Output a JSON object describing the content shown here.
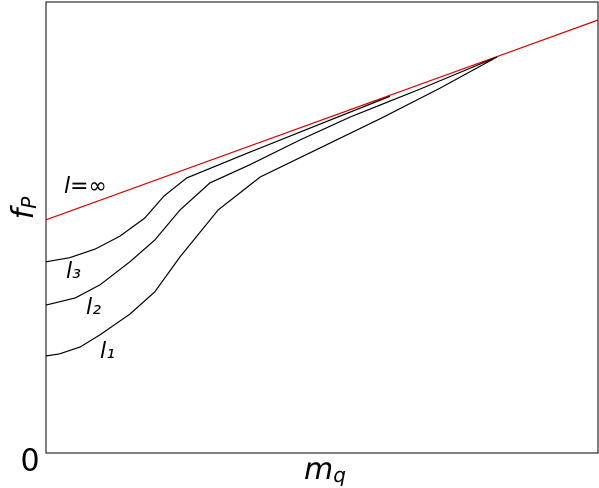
{
  "chart_data": {
    "type": "line",
    "xlabel": {
      "text": "m",
      "sub": "q"
    },
    "ylabel": {
      "text": "f",
      "sub": "P"
    },
    "xlim": [
      0,
      100
    ],
    "ylim": [
      0,
      100
    ],
    "yticks": [
      0
    ],
    "series": [
      {
        "name": "l=∞",
        "color": "#e00000",
        "x": [
          0,
          100
        ],
        "values": [
          51.7,
          96.0
        ]
      },
      {
        "name": "l₃",
        "color": "#000000",
        "x": [
          0,
          4.3,
          8.9,
          13.4,
          17.9,
          21.4,
          25.5,
          36.9,
          49.6,
          62.3
        ],
        "values": [
          42.4,
          43.3,
          45.2,
          48.1,
          52.1,
          57,
          61,
          66.7,
          72.9,
          79.1
        ]
      },
      {
        "name": "l₂",
        "color": "#000000",
        "x": [
          0,
          5.3,
          9.8,
          15.2,
          19.7,
          24.3,
          29.7,
          36.9,
          46,
          55.1,
          67.8,
          81.7
        ],
        "values": [
          32.8,
          34.4,
          37.3,
          42.4,
          47.2,
          53.9,
          59.9,
          63.9,
          69.4,
          74.5,
          80.7,
          87.8
        ]
      },
      {
        "name": "l₁",
        "color": "#000000",
        "x": [
          0,
          2.5,
          6.2,
          9.8,
          15.2,
          19.7,
          24.3,
          31.2,
          38.8,
          49.6,
          60.5,
          71.4,
          81.7
        ],
        "values": [
          21.5,
          22.0,
          23.5,
          26.2,
          30.8,
          35.7,
          43.5,
          53.9,
          61.2,
          67.6,
          74.1,
          80.9,
          87.8
        ]
      }
    ]
  }
}
